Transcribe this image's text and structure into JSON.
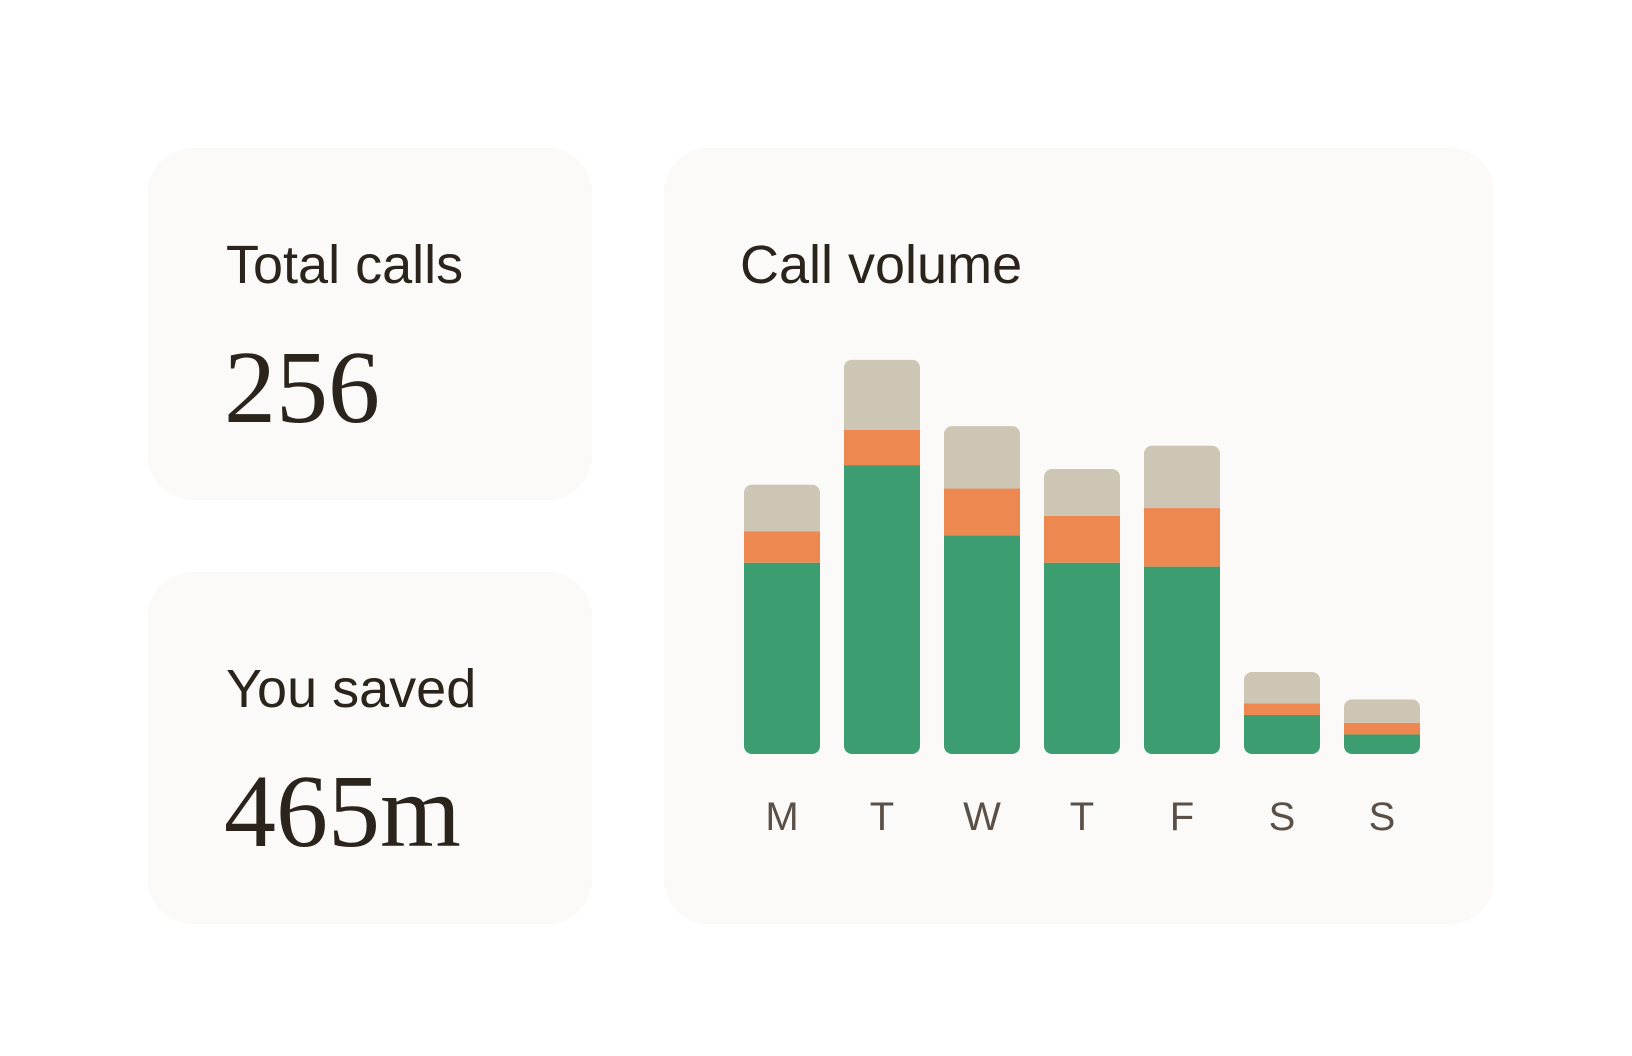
{
  "stats": {
    "total_calls_label": "Total calls",
    "total_calls_value": "256",
    "saved_label": "You saved",
    "saved_value": "465m"
  },
  "chart_data": {
    "type": "bar",
    "stacked": true,
    "title": "Call volume",
    "categories": [
      "M",
      "T",
      "W",
      "T",
      "F",
      "S",
      "S"
    ],
    "series": [
      {
        "color": "#3c9d71",
        "values": [
          49,
          74,
          56,
          49,
          48,
          10,
          5
        ]
      },
      {
        "color": "#ee8851",
        "values": [
          8,
          9,
          12,
          12,
          15,
          3,
          3
        ]
      },
      {
        "color": "#cdc6b5",
        "values": [
          12,
          18,
          16,
          12,
          16,
          8,
          6
        ]
      }
    ],
    "ylim": [
      0,
      104
    ],
    "grid": false,
    "legend": "none"
  }
}
